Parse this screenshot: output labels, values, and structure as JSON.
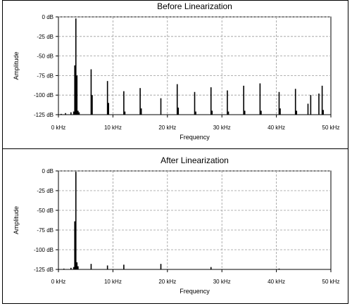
{
  "chart_data": [
    {
      "type": "bar",
      "title": "Before Linearization",
      "xlabel": "Frequency",
      "ylabel": "Amplitude",
      "xlim": [
        0,
        50
      ],
      "ylim": [
        -125,
        0
      ],
      "xticks": [
        "0 kHz",
        "10 kHz",
        "20 kHz",
        "30 kHz",
        "40 kHz",
        "50 kHz"
      ],
      "yticks": [
        "0 dB",
        "-25 dB",
        "-50 dB",
        "-75 dB",
        "-100 dB",
        "-125 dB"
      ],
      "grid": true,
      "x_unit": "kHz",
      "y_unit": "dB",
      "spectral_lines": [
        {
          "x": 0.5,
          "y": -124
        },
        {
          "x": 1.3,
          "y": -123
        },
        {
          "x": 2.3,
          "y": -122
        },
        {
          "x": 2.8,
          "y": -121
        },
        {
          "x": 3.0,
          "y": -62
        },
        {
          "x": 3.2,
          "y": -2
        },
        {
          "x": 3.4,
          "y": -75
        },
        {
          "x": 3.6,
          "y": -120
        },
        {
          "x": 3.8,
          "y": -122
        },
        {
          "x": 6.0,
          "y": -67
        },
        {
          "x": 6.2,
          "y": -100
        },
        {
          "x": 9.0,
          "y": -82
        },
        {
          "x": 9.2,
          "y": -110
        },
        {
          "x": 12.0,
          "y": -95
        },
        {
          "x": 12.2,
          "y": -121
        },
        {
          "x": 15.0,
          "y": -91
        },
        {
          "x": 15.2,
          "y": -117
        },
        {
          "x": 18.8,
          "y": -104
        },
        {
          "x": 21.8,
          "y": -86
        },
        {
          "x": 22.0,
          "y": -116
        },
        {
          "x": 25.0,
          "y": -96
        },
        {
          "x": 25.2,
          "y": -121
        },
        {
          "x": 28.0,
          "y": -90
        },
        {
          "x": 28.2,
          "y": -120
        },
        {
          "x": 31.0,
          "y": -94
        },
        {
          "x": 31.2,
          "y": -121
        },
        {
          "x": 34.0,
          "y": -88
        },
        {
          "x": 34.2,
          "y": -120
        },
        {
          "x": 37.0,
          "y": -85
        },
        {
          "x": 37.2,
          "y": -120
        },
        {
          "x": 40.5,
          "y": -96
        },
        {
          "x": 40.7,
          "y": -117
        },
        {
          "x": 43.5,
          "y": -92
        },
        {
          "x": 43.7,
          "y": -120
        },
        {
          "x": 45.8,
          "y": -111
        },
        {
          "x": 46.3,
          "y": -100
        },
        {
          "x": 47.8,
          "y": -98
        },
        {
          "x": 48.4,
          "y": -88
        },
        {
          "x": 48.6,
          "y": -119
        }
      ]
    },
    {
      "type": "bar",
      "title": "After Linearization",
      "xlabel": "Frequency",
      "ylabel": "Amplitude",
      "xlim": [
        0,
        50
      ],
      "ylim": [
        -125,
        0
      ],
      "xticks": [
        "0 kHz",
        "10 kHz",
        "20 kHz",
        "30 kHz",
        "40 kHz",
        "50 kHz"
      ],
      "yticks": [
        "0 dB",
        "-25 dB",
        "-50 dB",
        "-75 dB",
        "-100 dB",
        "-125 dB"
      ],
      "grid": true,
      "x_unit": "kHz",
      "y_unit": "dB",
      "spectral_lines": [
        {
          "x": 1.0,
          "y": -124
        },
        {
          "x": 2.3,
          "y": -123
        },
        {
          "x": 2.8,
          "y": -122
        },
        {
          "x": 3.0,
          "y": -64
        },
        {
          "x": 3.2,
          "y": -1
        },
        {
          "x": 3.4,
          "y": -116
        },
        {
          "x": 3.6,
          "y": -121
        },
        {
          "x": 6.0,
          "y": -118
        },
        {
          "x": 9.0,
          "y": -120
        },
        {
          "x": 12.0,
          "y": -119
        },
        {
          "x": 18.8,
          "y": -118
        },
        {
          "x": 28.0,
          "y": -122
        },
        {
          "x": 40.5,
          "y": -124
        }
      ]
    }
  ]
}
